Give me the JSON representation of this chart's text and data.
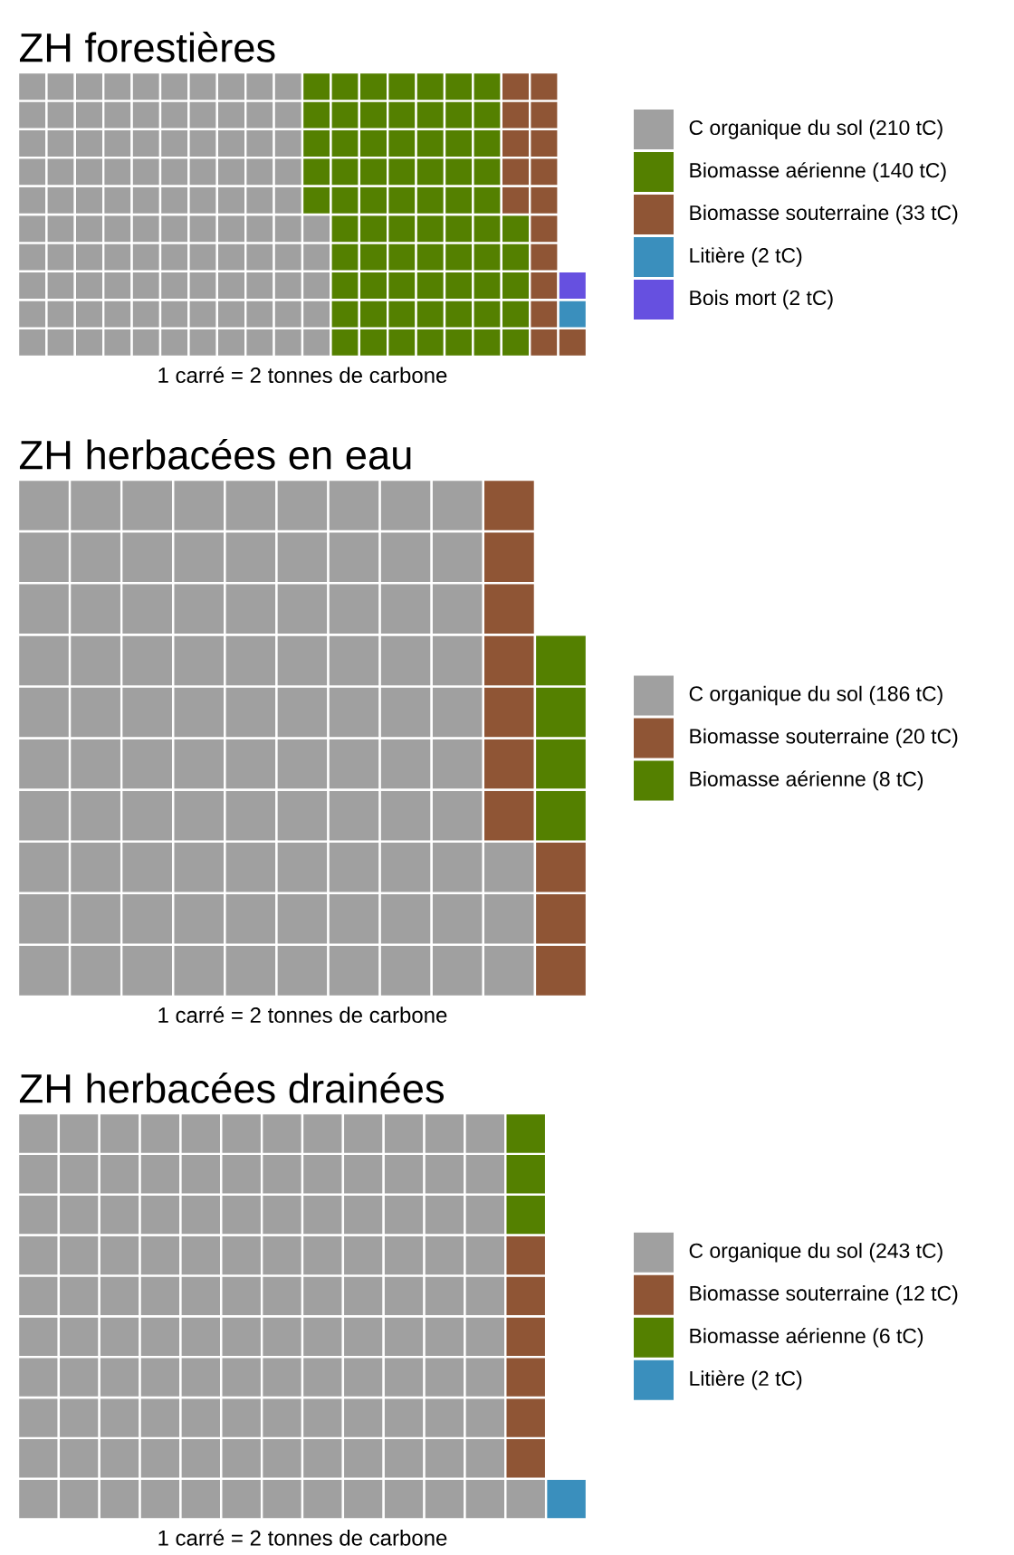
{
  "chart_data": [
    {
      "type": "other",
      "title": "ZH forestières",
      "categories": [
        "C organique du sol",
        "Biomasse aérienne",
        "Biomasse souterraine",
        "Litière",
        "Bois mort"
      ],
      "values": [
        210,
        140,
        33,
        2,
        2
      ],
      "value_labels": [
        "(210 tC)",
        "(140 tC)",
        "(33 tC)",
        "(2 tC)",
        "(2 tC)"
      ],
      "colors": [
        "#a0a0a0",
        "#548000",
        "#8f5535",
        "#3a8fbd",
        "#6650e0"
      ],
      "annotations": [
        "1 carré = 2 tonnes de carbone"
      ]
    },
    {
      "type": "other",
      "title": "ZH herbacées en eau",
      "categories": [
        "C organique du sol",
        "Biomasse souterraine",
        "Biomasse aérienne"
      ],
      "values": [
        186,
        20,
        8
      ],
      "value_labels": [
        "(186 tC)",
        "(20 tC)",
        "(8 tC)"
      ],
      "colors": [
        "#a0a0a0",
        "#8f5535",
        "#548000"
      ],
      "annotations": [
        "1 carré = 2 tonnes de carbone"
      ]
    },
    {
      "type": "other",
      "title": "ZH herbacées drainées",
      "categories": [
        "C organique du sol",
        "Biomasse souterraine",
        "Biomasse aérienne",
        "Litière"
      ],
      "values": [
        243,
        12,
        6,
        2
      ],
      "value_labels": [
        "(243 tC)",
        "(12 tC)",
        "(6 tC)",
        "(2 tC)"
      ],
      "colors": [
        "#a0a0a0",
        "#8f5535",
        "#548000",
        "#3a8fbd"
      ],
      "annotations": [
        "1 carré = 2 tonnes de carbone"
      ]
    }
  ]
}
